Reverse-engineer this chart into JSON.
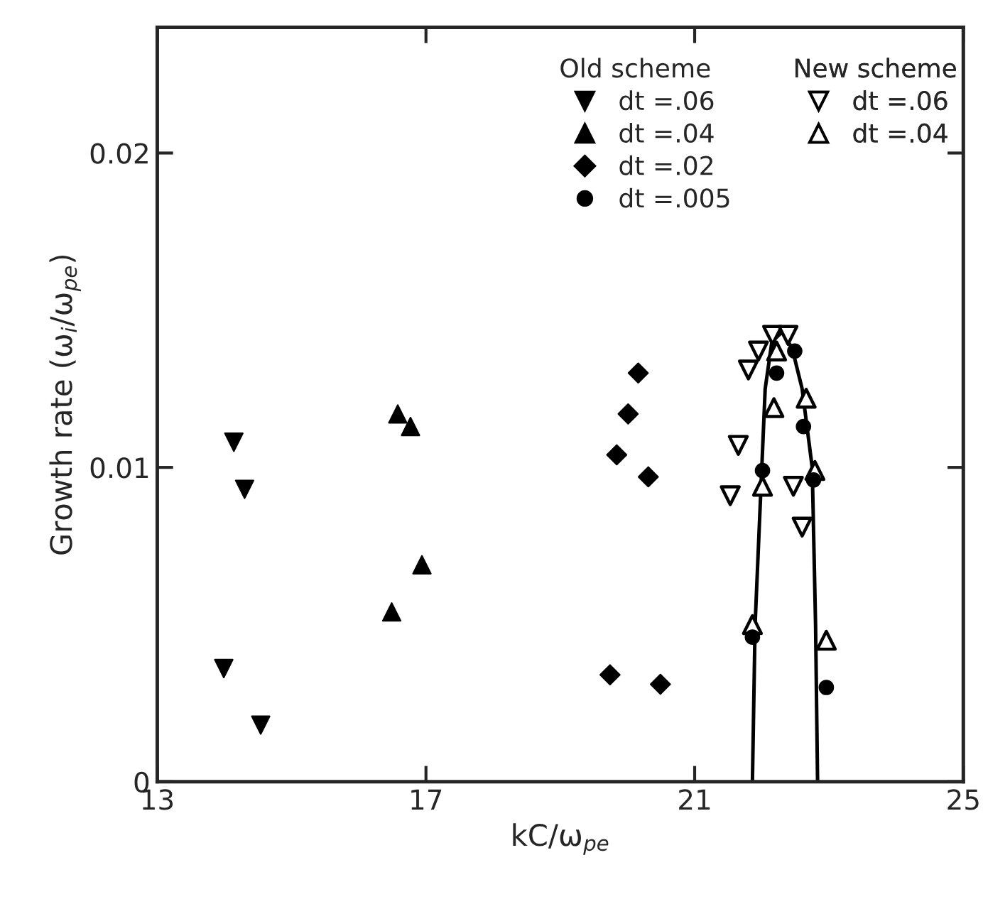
{
  "chart_data": {
    "type": "scatter",
    "xlabel": "kC/ω$_{pe}$",
    "ylabel": "Growth rate (ω$_{i}$/ω$_{pe}$)",
    "xlim": [
      13,
      25
    ],
    "xticks": [
      13,
      17,
      21,
      25
    ],
    "ylim": [
      0,
      0.024
    ],
    "yticks": [
      0,
      0.01,
      0.02
    ],
    "legend": "top right",
    "legend_title": "Old scheme",
    "annotations": [
      "New scheme"
    ],
    "grid": false,
    "series": [
      {
        "name": "dt =.06",
        "color": "#000000",
        "marker": "triangle_down",
        "x": [
          14.14,
          14.3,
          13.99,
          14.54
        ],
        "values": [
          0.0108,
          0.0093,
          0.0036,
          0.0018
        ]
      },
      {
        "name": "dt =.04",
        "color": "#000000",
        "marker": "triangle",
        "x": [
          16.58,
          16.77,
          16.94,
          16.49
        ],
        "values": [
          0.0117,
          0.0113,
          0.0069,
          0.0054
        ]
      },
      {
        "name": "dt =.02",
        "color": "#000000",
        "marker": "diamond",
        "x": [
          20.16,
          20.01,
          19.84,
          20.31,
          19.74,
          20.49
        ],
        "values": [
          0.013,
          0.0117,
          0.0104,
          0.0097,
          0.0034,
          0.0031
        ]
      },
      {
        "name": "dt =.005",
        "color": "#000000",
        "marker": "circle",
        "x": [
          22.22,
          22.49,
          22.62,
          22.01,
          22.77,
          21.86,
          22.96
        ],
        "values": [
          0.013,
          0.0137,
          0.0113,
          0.0099,
          0.0096,
          0.0046,
          0.003
        ]
      },
      {
        "type": "line",
        "color": "#000000",
        "marker": "none",
        "line_style": "solid",
        "x": [
          21.86,
          21.9,
          22.0,
          22.05,
          22.15,
          22.3,
          22.45,
          22.6,
          22.75,
          22.8,
          22.83
        ],
        "values": [
          0,
          0.005,
          0.01,
          0.0125,
          0.014,
          0.0143,
          0.0138,
          0.0125,
          0.01,
          0.005,
          0
        ]
      },
      {
        "name": "dt =.06",
        "color": "#000000",
        "marker": "triangle_down_open",
        "x": [
          21.65,
          21.8,
          21.95,
          22.16,
          22.39,
          21.53,
          22.47,
          22.6
        ],
        "values": [
          0.0107,
          0.0131,
          0.0137,
          0.0142,
          0.0142,
          0.0091,
          0.0094,
          0.0081
        ]
      },
      {
        "name": "dt =.04",
        "color": "#000000",
        "marker": "triangle_open",
        "x": [
          22.22,
          22.66,
          22.18,
          22.01,
          22.79,
          21.86,
          22.96
        ],
        "values": [
          0.0137,
          0.0122,
          0.0119,
          0.0094,
          0.0099,
          0.005,
          0.0045
        ]
      }
    ]
  }
}
